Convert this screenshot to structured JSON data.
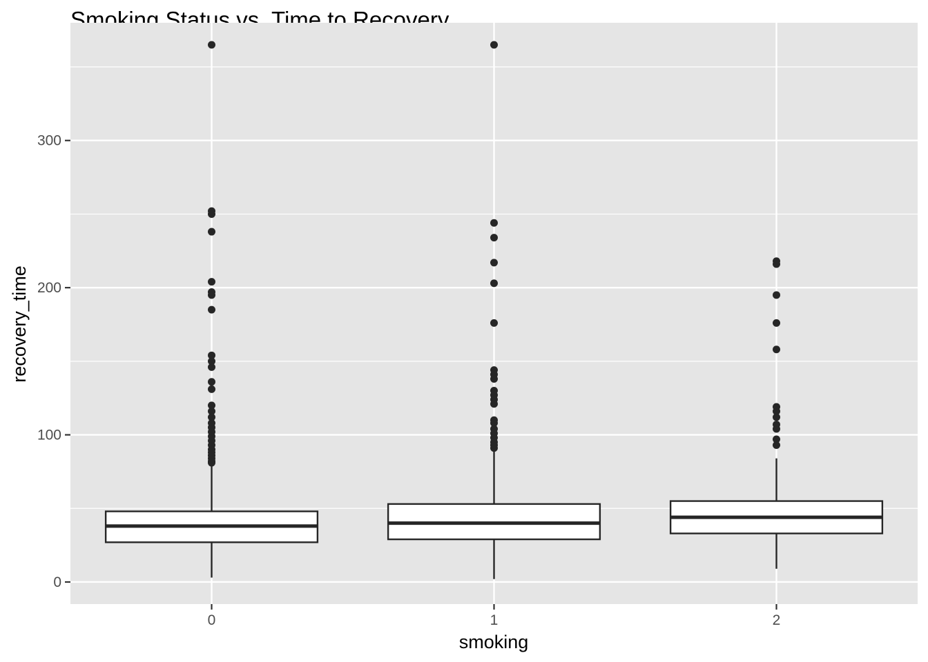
{
  "chart_data": {
    "type": "boxplot",
    "title": "Smoking Status vs. Time to Recovery",
    "xlabel": "smoking",
    "ylabel": "recovery_time",
    "categories": [
      "0",
      "1",
      "2"
    ],
    "ylim": [
      -15,
      380
    ],
    "y_ticks": [
      0,
      100,
      200,
      300
    ],
    "y_tick_labels": [
      "0",
      "100",
      "200",
      "300"
    ],
    "grid": true,
    "colors": {
      "panel_background": "#e5e5e5",
      "grid": "#ffffff",
      "box_fill": "#ffffff",
      "box_stroke": "#262626",
      "outlier": "#262626"
    },
    "boxes": [
      {
        "category": "0",
        "whisker_low": 3,
        "q1": 27,
        "median": 38,
        "q3": 48,
        "whisker_high": 80,
        "outliers": [
          365,
          252,
          250,
          238,
          204,
          197,
          195,
          185,
          154,
          150,
          146,
          136,
          131,
          120,
          116,
          112,
          108,
          105,
          102,
          99,
          96,
          93,
          90,
          88,
          86,
          84,
          82,
          81
        ]
      },
      {
        "category": "1",
        "whisker_low": 2,
        "q1": 29,
        "median": 40,
        "q3": 53,
        "whisker_high": 89,
        "outliers": [
          365,
          244,
          234,
          217,
          203,
          176,
          144,
          141,
          138,
          130,
          127,
          124,
          121,
          110,
          108,
          104,
          101,
          98,
          95,
          93,
          91
        ]
      },
      {
        "category": "2",
        "whisker_low": 9,
        "q1": 33,
        "median": 44,
        "q3": 55,
        "whisker_high": 84,
        "outliers": [
          218,
          216,
          195,
          176,
          158,
          119,
          116,
          112,
          107,
          104,
          97,
          93
        ]
      }
    ]
  }
}
